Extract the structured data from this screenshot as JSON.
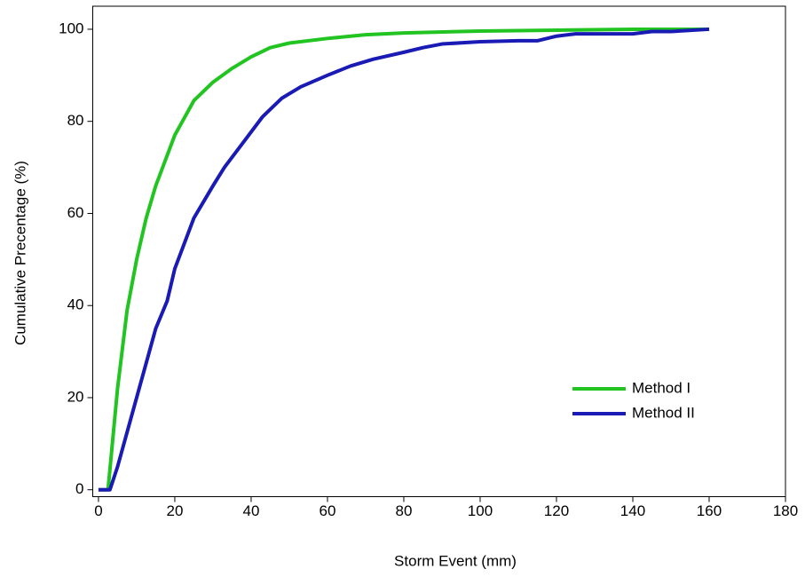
{
  "chart_data": {
    "type": "line",
    "x_label": "Storm Event (mm)",
    "y_label": "Cumulative Precentage (%)",
    "xlim": [
      -1.5,
      180
    ],
    "ylim": [
      -1.5,
      105
    ],
    "xticks": [
      0,
      20,
      40,
      60,
      80,
      100,
      120,
      140,
      160,
      180
    ],
    "yticks": [
      0,
      20,
      40,
      60,
      80,
      100
    ],
    "legend": "lower right",
    "series": [
      {
        "name": "Method I",
        "color": "#22c422",
        "x": [
          0,
          2.5,
          5,
          7.5,
          10,
          12.5,
          15,
          17.5,
          20,
          25,
          30,
          35,
          40,
          45,
          50,
          60,
          70,
          80,
          100,
          120,
          140,
          160
        ],
        "values": [
          0,
          0,
          22,
          39,
          50,
          59,
          66,
          71.5,
          77,
          84.5,
          88.5,
          91.5,
          94,
          96,
          97,
          98,
          98.8,
          99.2,
          99.6,
          99.8,
          100,
          100
        ]
      },
      {
        "name": "Method II",
        "color": "#1a1ab4",
        "x": [
          0,
          3,
          5,
          10,
          15,
          18,
          20,
          25,
          30,
          33,
          38,
          43,
          48,
          53,
          60,
          66,
          72,
          80,
          85,
          90,
          100,
          110,
          115,
          120,
          125,
          140,
          145,
          150,
          160
        ],
        "values": [
          0,
          0,
          5,
          20,
          35,
          41,
          48,
          59,
          66,
          70,
          75.5,
          81,
          85,
          87.5,
          90,
          92,
          93.5,
          95,
          96,
          96.8,
          97.3,
          97.5,
          97.5,
          98.5,
          99,
          99,
          99.5,
          99.5,
          100
        ]
      }
    ]
  }
}
